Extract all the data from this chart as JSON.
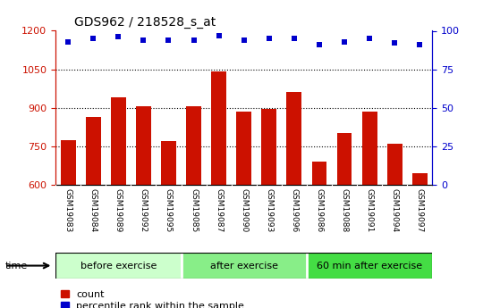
{
  "title": "GDS962 / 218528_s_at",
  "samples": [
    "GSM19083",
    "GSM19084",
    "GSM19089",
    "GSM19092",
    "GSM19095",
    "GSM19085",
    "GSM19087",
    "GSM19090",
    "GSM19093",
    "GSM19096",
    "GSM19086",
    "GSM19088",
    "GSM19091",
    "GSM19094",
    "GSM19097"
  ],
  "counts": [
    775,
    865,
    940,
    905,
    770,
    905,
    1040,
    885,
    895,
    960,
    690,
    800,
    885,
    760,
    645
  ],
  "percentile_ranks": [
    93,
    95,
    96,
    94,
    94,
    94,
    97,
    94,
    95,
    95,
    91,
    93,
    95,
    92,
    91
  ],
  "groups": [
    {
      "label": "before exercise",
      "start": 0,
      "end": 5,
      "color": "#ccffcc"
    },
    {
      "label": "after exercise",
      "start": 5,
      "end": 10,
      "color": "#88ee88"
    },
    {
      "label": "60 min after exercise",
      "start": 10,
      "end": 15,
      "color": "#44dd44"
    }
  ],
  "bar_color": "#cc1100",
  "dot_color": "#0000cc",
  "ylim_left": [
    600,
    1200
  ],
  "ylim_right": [
    0,
    100
  ],
  "yticks_left": [
    600,
    750,
    900,
    1050,
    1200
  ],
  "yticks_right": [
    0,
    25,
    50,
    75,
    100
  ],
  "grid_values": [
    750,
    900,
    1050
  ],
  "bar_width": 0.6,
  "plot_bg": "#ffffff",
  "tick_label_bg": "#d0d0d0",
  "title_fontsize": 10,
  "label_fontsize": 6.5,
  "group_fontsize": 8
}
